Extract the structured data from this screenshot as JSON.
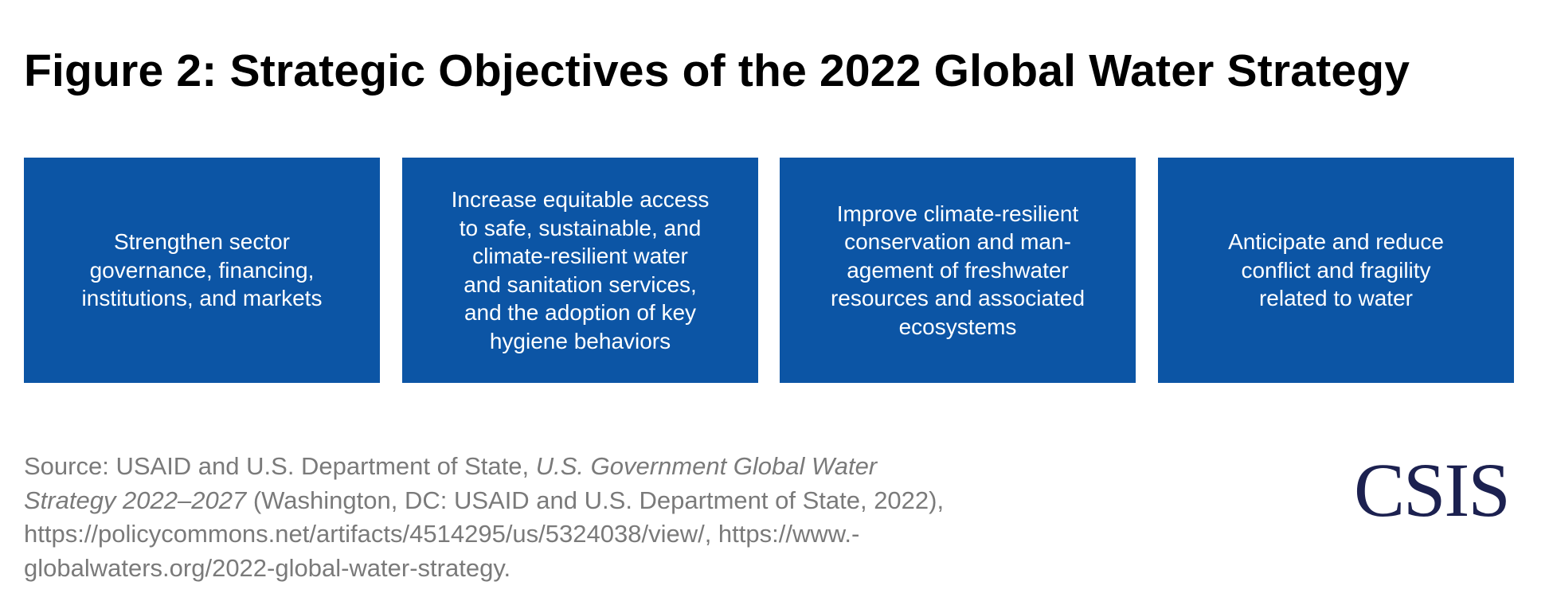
{
  "title": "Figure 2: Strategic Objectives of the 2022 Global Water Strategy",
  "objectives": [
    {
      "text": "Strengthen sector\ngovernance, financing,\ninstitutions, and markets"
    },
    {
      "text": "Increase equitable access\nto safe, sustainable, and\nclimate-resilient water\nand sanitation services,\nand the adoption of key\nhygiene behaviors"
    },
    {
      "text": "Improve climate-resilient\nconservation and man-\nagement of freshwater\nresources and associated\necosystems"
    },
    {
      "text": "Anticipate and reduce\nconflict and fragility\nrelated to water"
    }
  ],
  "source": {
    "line1_prefix": "Source: USAID and U.S. Department of State, ",
    "line1_italic": "U.S. Government Global Water",
    "line2_italic": "Strategy 2022–2027",
    "line2_suffix": " (Washington, DC: USAID and U.S. Department of State, 2022),",
    "line3": "https://policycommons.net/artifacts/4514295/us/5324038/view/, https://www.-",
    "line4": "globalwaters.org/2022-global-water-strategy."
  },
  "logo": "CSIS",
  "colors": {
    "box_fill": "#0c55a5",
    "box_text": "#ffffff",
    "title_text": "#000000",
    "source_text": "#7a7a7a",
    "logo_text": "#1c2150"
  }
}
